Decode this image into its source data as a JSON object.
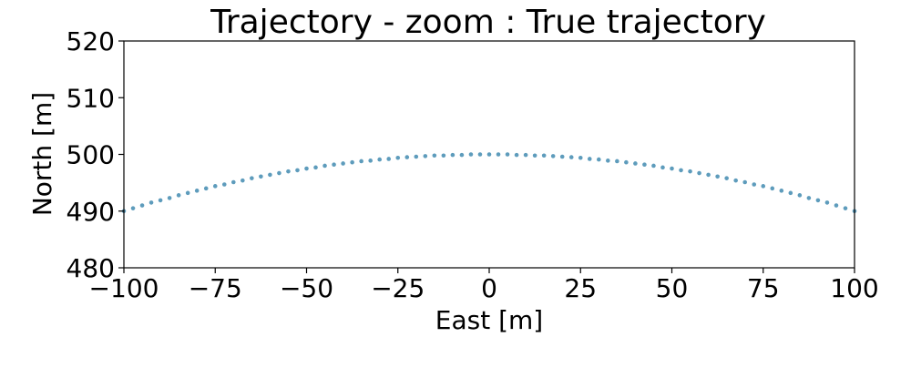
{
  "chart_data": {
    "type": "scatter",
    "title": "Trajectory - zoom : True trajectory",
    "xlabel": "East [m]",
    "ylabel": "North [m]",
    "xlim": [
      -100,
      100
    ],
    "ylim": [
      480,
      520
    ],
    "xticks": [
      -100,
      -75,
      -50,
      -25,
      0,
      25,
      50,
      75,
      100
    ],
    "yticks": [
      480,
      490,
      500,
      510,
      520
    ],
    "xtick_labels": [
      "−100",
      "−75",
      "−50",
      "−25",
      "0",
      "25",
      "50",
      "75",
      "100"
    ],
    "ytick_labels": [
      "480",
      "490",
      "500",
      "510",
      "520"
    ],
    "grid": false,
    "legend": false,
    "marker_color": "#4c91b5",
    "series": [
      {
        "x": [
          -100,
          -97.5,
          -95,
          -92.5,
          -90,
          -87.5,
          -85,
          -82.5,
          -80,
          -77.5,
          -75,
          -72.5,
          -70,
          -67.5,
          -65,
          -62.5,
          -60,
          -57.5,
          -55,
          -52.5,
          -50,
          -47.5,
          -45,
          -42.5,
          -40,
          -37.5,
          -35,
          -32.5,
          -30,
          -27.5,
          -25,
          -22.5,
          -20,
          -17.5,
          -15,
          -12.5,
          -10,
          -7.5,
          -5,
          -2.5,
          0,
          2.5,
          5,
          7.5,
          10,
          12.5,
          15,
          17.5,
          20,
          22.5,
          25,
          27.5,
          30,
          32.5,
          35,
          37.5,
          40,
          42.5,
          45,
          47.5,
          50,
          52.5,
          55,
          57.5,
          60,
          62.5,
          65,
          67.5,
          70,
          72.5,
          75,
          77.5,
          80,
          82.5,
          85,
          87.5,
          90,
          92.5,
          95,
          97.5,
          100
        ],
        "y": [
          490.0,
          490.5,
          491.0,
          491.5,
          491.9,
          492.3,
          492.8,
          493.2,
          493.6,
          494.0,
          494.4,
          494.7,
          495.1,
          495.4,
          495.8,
          496.1,
          496.4,
          496.7,
          497.0,
          497.2,
          497.5,
          497.7,
          498.0,
          498.2,
          498.4,
          498.6,
          498.8,
          498.9,
          499.1,
          499.2,
          499.4,
          499.5,
          499.6,
          499.7,
          499.8,
          499.8,
          499.9,
          499.9,
          500.0,
          500.0,
          500.0,
          500.0,
          500.0,
          499.9,
          499.9,
          499.8,
          499.8,
          499.7,
          499.6,
          499.5,
          499.4,
          499.2,
          499.1,
          498.9,
          498.8,
          498.6,
          498.4,
          498.2,
          498.0,
          497.7,
          497.5,
          497.2,
          497.0,
          496.7,
          496.4,
          496.1,
          495.8,
          495.4,
          495.1,
          494.7,
          494.4,
          494.0,
          493.6,
          493.2,
          492.8,
          492.3,
          491.9,
          491.5,
          491.0,
          490.5,
          490.0
        ]
      }
    ]
  }
}
